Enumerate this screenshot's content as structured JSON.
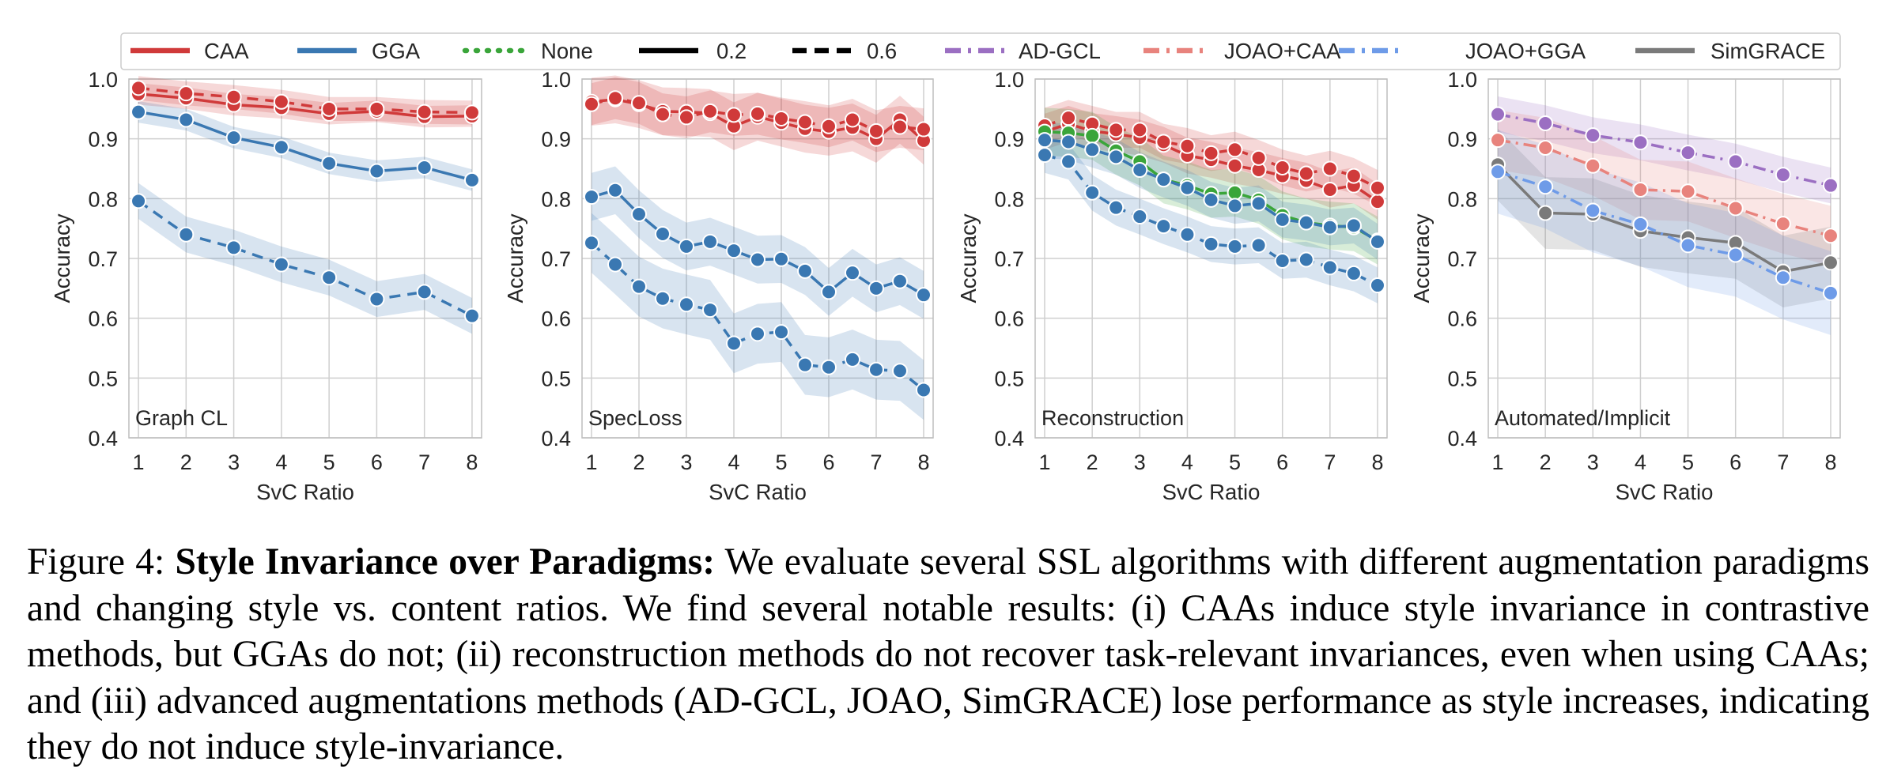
{
  "colors": {
    "CAA": "#d03a3a",
    "GGA": "#3a78b2",
    "None": "#3aa53a",
    "AD-GCL": "#9b6fc2",
    "JOAO+CAA": "#e8837d",
    "JOAO+GGA": "#6e9be8",
    "SimGRACE": "#7a7a7a",
    "grid": "#cfcfcf",
    "axis": "#333333"
  },
  "legend": [
    {
      "label": "CAA",
      "color": "#d03a3a",
      "dash": "solid"
    },
    {
      "label": "GGA",
      "color": "#3a78b2",
      "dash": "solid"
    },
    {
      "label": "None",
      "color": "#3aa53a",
      "dash": "dotted"
    },
    {
      "label": "0.2",
      "color": "#000000",
      "dash": "solid"
    },
    {
      "label": "0.6",
      "color": "#000000",
      "dash": "dashed"
    },
    {
      "label": "AD-GCL",
      "color": "#9b6fc2",
      "dash": "dashdot"
    },
    {
      "label": "JOAO+CAA",
      "color": "#e8837d",
      "dash": "dashdot"
    },
    {
      "label": "JOAO+GGA",
      "color": "#6e9be8",
      "dash": "dashdot"
    },
    {
      "label": "SimGRACE",
      "color": "#7a7a7a",
      "dash": "solid"
    }
  ],
  "chart_data": [
    {
      "type": "line",
      "panel_label": "Graph CL",
      "xlabel": "SvC Ratio",
      "ylabel": "Accuracy",
      "ylim": [
        0.4,
        1.0
      ],
      "xlim": [
        0.8,
        8.2
      ],
      "yticks": [
        "0.4",
        "0.5",
        "0.6",
        "0.7",
        "0.8",
        "0.9",
        "1.0"
      ],
      "xticks": [
        "1",
        "2",
        "3",
        "4",
        "5",
        "6",
        "7",
        "8"
      ],
      "grid": true,
      "series": [
        {
          "name": "CAA",
          "key": "CAA",
          "dash": "solid",
          "x": [
            1,
            2,
            3,
            4,
            5,
            6,
            7,
            8
          ],
          "y": [
            0.975,
            0.968,
            0.957,
            0.952,
            0.942,
            0.946,
            0.937,
            0.938
          ],
          "band": 0.018
        },
        {
          "name": "CAA",
          "key": "CAA",
          "dash": "dashed",
          "x": [
            1,
            2,
            3,
            4,
            5,
            6,
            7,
            8
          ],
          "y": [
            0.985,
            0.976,
            0.97,
            0.962,
            0.95,
            0.95,
            0.945,
            0.944
          ],
          "band": 0.02
        },
        {
          "name": "GGA",
          "key": "GGA",
          "dash": "solid",
          "x": [
            1,
            2,
            3,
            4,
            5,
            6,
            7,
            8
          ],
          "y": [
            0.945,
            0.932,
            0.902,
            0.886,
            0.859,
            0.846,
            0.852,
            0.831
          ],
          "band": 0.018
        },
        {
          "name": "GGA",
          "key": "GGA",
          "dash": "dashed",
          "x": [
            1,
            2,
            3,
            4,
            5,
            6,
            7,
            8
          ],
          "y": [
            0.796,
            0.74,
            0.718,
            0.69,
            0.668,
            0.632,
            0.644,
            0.604
          ],
          "band": 0.03
        }
      ]
    },
    {
      "type": "line",
      "panel_label": "SpecLoss",
      "xlabel": "SvC Ratio",
      "ylabel": "Accuracy",
      "ylim": [
        0.4,
        1.0
      ],
      "xlim": [
        0.8,
        8.2
      ],
      "yticks": [
        "0.4",
        "0.5",
        "0.6",
        "0.7",
        "0.8",
        "0.9",
        "1.0"
      ],
      "xticks": [
        "1",
        "2",
        "3",
        "4",
        "5",
        "6",
        "7",
        "8"
      ],
      "grid": true,
      "series": [
        {
          "name": "CAA",
          "key": "CAA",
          "dash": "solid",
          "x": [
            1,
            1.5,
            2,
            2.5,
            3,
            3.5,
            4,
            4.5,
            5,
            5.5,
            6,
            6.5,
            7,
            7.5,
            8
          ],
          "y": [
            0.962,
            0.966,
            0.958,
            0.946,
            0.945,
            0.943,
            0.921,
            0.937,
            0.927,
            0.917,
            0.912,
            0.919,
            0.9,
            0.932,
            0.897
          ],
          "band": 0.04
        },
        {
          "name": "CAA",
          "key": "CAA",
          "dash": "dashed",
          "x": [
            1,
            1.5,
            2,
            2.5,
            3,
            3.5,
            4,
            4.5,
            5,
            5.5,
            6,
            6.5,
            7,
            7.5,
            8
          ],
          "y": [
            0.958,
            0.968,
            0.96,
            0.941,
            0.936,
            0.946,
            0.94,
            0.942,
            0.934,
            0.928,
            0.921,
            0.932,
            0.913,
            0.92,
            0.916
          ],
          "band": 0.035
        },
        {
          "name": "GGA",
          "key": "GGA",
          "dash": "solid",
          "x": [
            1,
            1.5,
            2,
            2.5,
            3,
            3.5,
            4,
            4.5,
            5,
            5.5,
            6,
            6.5,
            7,
            7.5,
            8
          ],
          "y": [
            0.803,
            0.814,
            0.774,
            0.741,
            0.72,
            0.728,
            0.713,
            0.698,
            0.699,
            0.679,
            0.644,
            0.676,
            0.65,
            0.662,
            0.639
          ],
          "band": 0.04
        },
        {
          "name": "GGA",
          "key": "GGA",
          "dash": "dashed",
          "x": [
            1,
            1.5,
            2,
            2.5,
            3,
            3.5,
            4,
            4.5,
            5,
            5.5,
            6,
            6.5,
            7,
            7.5,
            8
          ],
          "y": [
            0.726,
            0.69,
            0.653,
            0.633,
            0.623,
            0.614,
            0.558,
            0.574,
            0.577,
            0.522,
            0.518,
            0.531,
            0.514,
            0.512,
            0.48
          ],
          "band": 0.05
        }
      ]
    },
    {
      "type": "line",
      "panel_label": "Reconstruction",
      "xlabel": "SvC Ratio",
      "ylabel": "Accuracy",
      "ylim": [
        0.4,
        1.0
      ],
      "xlim": [
        0.8,
        8.2
      ],
      "yticks": [
        "0.4",
        "0.5",
        "0.6",
        "0.7",
        "0.8",
        "0.9",
        "1.0"
      ],
      "xticks": [
        "1",
        "2",
        "3",
        "4",
        "5",
        "6",
        "7",
        "8"
      ],
      "grid": true,
      "series": [
        {
          "name": "CAA",
          "key": "CAA",
          "dash": "solid",
          "x": [
            1,
            1.5,
            2,
            2.5,
            3,
            3.5,
            4,
            4.5,
            5,
            5.5,
            6,
            6.5,
            7,
            7.5,
            8
          ],
          "y": [
            0.912,
            0.925,
            0.913,
            0.908,
            0.902,
            0.89,
            0.872,
            0.865,
            0.855,
            0.848,
            0.838,
            0.83,
            0.815,
            0.822,
            0.795
          ],
          "band": 0.03
        },
        {
          "name": "CAA",
          "key": "CAA",
          "dash": "dashed",
          "x": [
            1,
            1.5,
            2,
            2.5,
            3,
            3.5,
            4,
            4.5,
            5,
            5.5,
            6,
            6.5,
            7,
            7.5,
            8
          ],
          "y": [
            0.922,
            0.935,
            0.925,
            0.915,
            0.915,
            0.895,
            0.888,
            0.876,
            0.882,
            0.868,
            0.852,
            0.842,
            0.85,
            0.838,
            0.818
          ],
          "band": 0.03
        },
        {
          "name": "None",
          "key": "None",
          "dash": "solid",
          "x": [
            1,
            1.5,
            2,
            2.5,
            3,
            3.5,
            4,
            4.5,
            5,
            5.5,
            6,
            6.5,
            7,
            7.5,
            8
          ],
          "y": [
            0.912,
            0.91,
            0.905,
            0.88,
            0.862,
            0.832,
            0.822,
            0.808,
            0.81,
            0.798,
            0.772,
            0.76,
            0.755,
            0.752,
            0.73
          ],
          "band": 0.04
        },
        {
          "name": "GGA",
          "key": "GGA",
          "dash": "solid",
          "x": [
            1,
            1.5,
            2,
            2.5,
            3,
            3.5,
            4,
            4.5,
            5,
            5.5,
            6,
            6.5,
            7,
            7.5,
            8
          ],
          "y": [
            0.898,
            0.895,
            0.882,
            0.87,
            0.848,
            0.832,
            0.818,
            0.798,
            0.788,
            0.792,
            0.765,
            0.76,
            0.752,
            0.755,
            0.728
          ],
          "band": 0.03
        },
        {
          "name": "GGA",
          "key": "GGA",
          "dash": "dashed",
          "x": [
            1,
            1.5,
            2,
            2.5,
            3,
            3.5,
            4,
            4.5,
            5,
            5.5,
            6,
            6.5,
            7,
            7.5,
            8
          ],
          "y": [
            0.873,
            0.862,
            0.81,
            0.785,
            0.77,
            0.754,
            0.74,
            0.724,
            0.72,
            0.722,
            0.696,
            0.698,
            0.685,
            0.675,
            0.655
          ],
          "band": 0.03
        }
      ]
    },
    {
      "type": "line",
      "panel_label": "Automated/Implicit",
      "xlabel": "SvC Ratio",
      "ylabel": "Accuracy",
      "ylim": [
        0.4,
        1.0
      ],
      "xlim": [
        0.8,
        8.2
      ],
      "yticks": [
        "0.4",
        "0.5",
        "0.6",
        "0.7",
        "0.8",
        "0.9",
        "1.0"
      ],
      "xticks": [
        "1",
        "2",
        "3",
        "4",
        "5",
        "6",
        "7",
        "8"
      ],
      "grid": true,
      "series": [
        {
          "name": "AD-GCL",
          "key": "AD-GCL",
          "dash": "dashdot",
          "x": [
            1,
            2,
            3,
            4,
            5,
            6,
            7,
            8
          ],
          "y": [
            0.941,
            0.926,
            0.906,
            0.894,
            0.877,
            0.862,
            0.84,
            0.822
          ],
          "band": 0.03
        },
        {
          "name": "JOAO+CAA",
          "key": "JOAO+CAA",
          "dash": "dashdot",
          "x": [
            1,
            2,
            3,
            4,
            5,
            6,
            7,
            8
          ],
          "y": [
            0.898,
            0.885,
            0.855,
            0.815,
            0.812,
            0.784,
            0.758,
            0.738
          ],
          "band": 0.05
        },
        {
          "name": "SimGRACE",
          "key": "SimGRACE",
          "dash": "solid",
          "x": [
            1,
            2,
            3,
            4,
            5,
            6,
            7,
            8
          ],
          "y": [
            0.857,
            0.776,
            0.774,
            0.746,
            0.735,
            0.726,
            0.678,
            0.693
          ],
          "band": 0.06
        },
        {
          "name": "JOAO+GGA",
          "key": "JOAO+GGA",
          "dash": "dashdot",
          "x": [
            1,
            2,
            3,
            4,
            5,
            6,
            7,
            8
          ],
          "y": [
            0.845,
            0.82,
            0.78,
            0.757,
            0.722,
            0.706,
            0.668,
            0.642
          ],
          "band": 0.07
        }
      ]
    }
  ],
  "caption": {
    "figure_label": "Figure 4:",
    "title": "Style Invariance over Paradigms:",
    "text": "We evaluate several SSL algorithms with different augmentation paradigms and changing style vs. content ratios. We find several notable results: (i) CAAs induce style invariance in contrastive methods, but GGAs do not; (ii) reconstruction methods do not recover task-relevant invariances, even when using CAAs; and (iii) advanced augmentations methods (AD-GCL, JOAO, SimGRACE) lose performance as style increases, indicating they do not induce style-invariance."
  }
}
